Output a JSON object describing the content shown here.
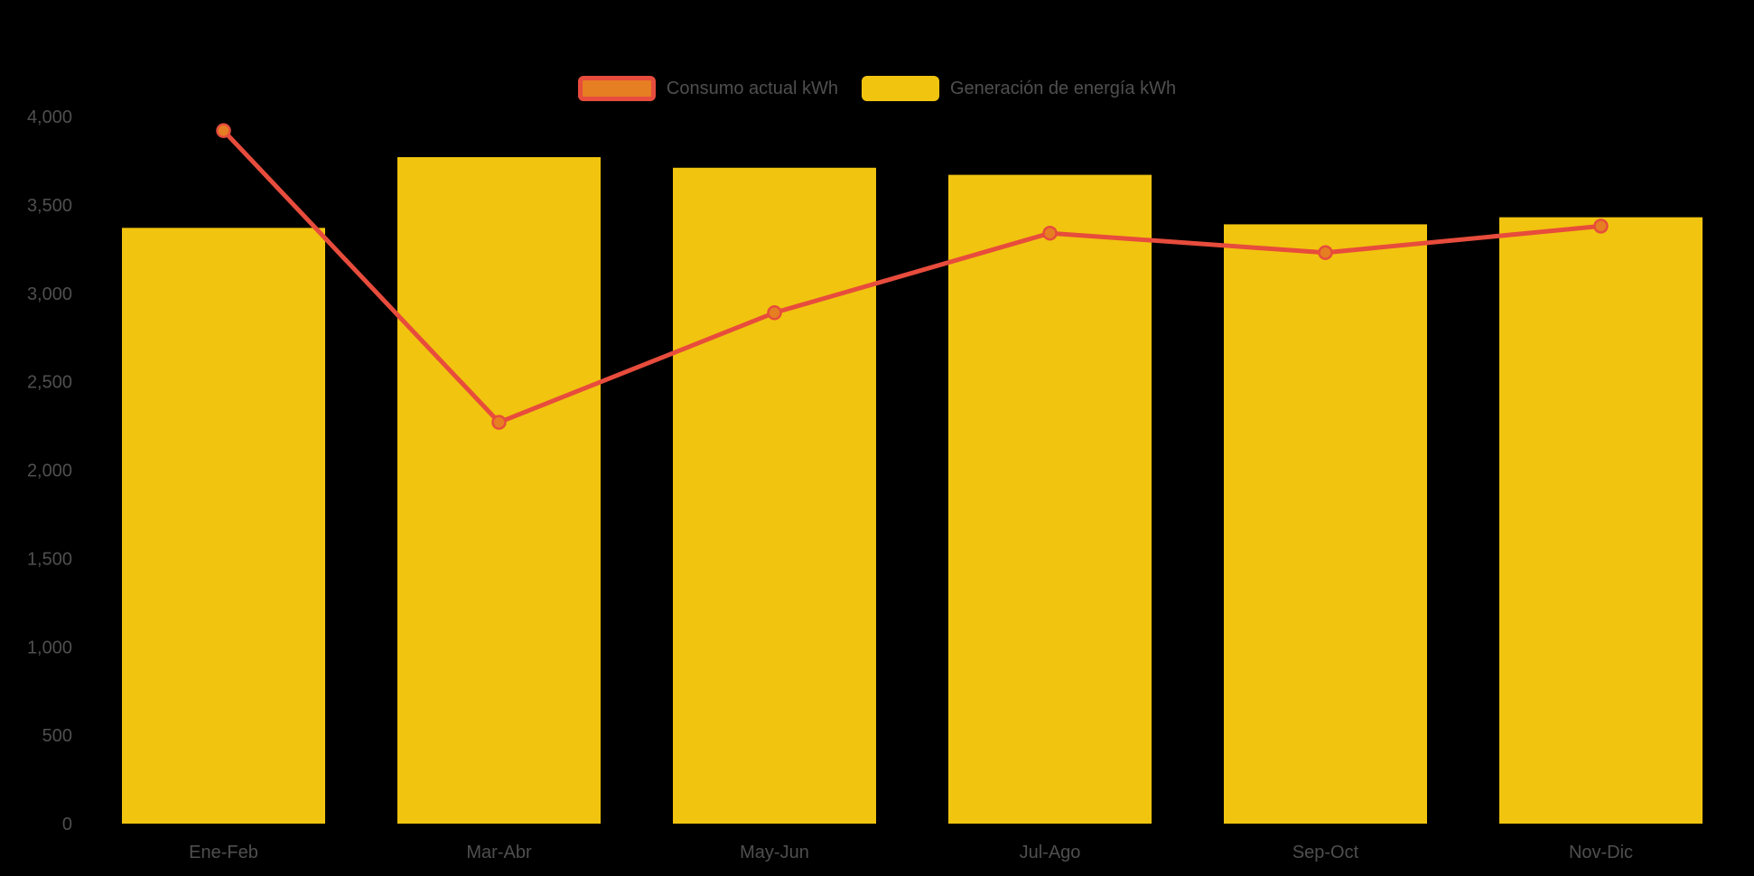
{
  "chart_data": {
    "type": "bar",
    "subtype": "combo-bar-line",
    "categories": [
      "Ene-Feb",
      "Mar-Abr",
      "May-Jun",
      "Jul-Ago",
      "Sep-Oct",
      "Nov-Dic"
    ],
    "series": [
      {
        "name": "Consumo actual kWh",
        "type": "line",
        "color": "#E74C3C",
        "marker_color": "#E67E22",
        "values": [
          3920,
          2270,
          2890,
          3340,
          3230,
          3380
        ]
      },
      {
        "name": "Generación de energía kWh",
        "type": "bar",
        "color": "#F1C40F",
        "values": [
          3370,
          3770,
          3710,
          3670,
          3390,
          3430
        ]
      }
    ],
    "title": "",
    "xlabel": "",
    "ylabel": "",
    "ylim": [
      0,
      4000
    ],
    "ytick_step": 500,
    "ytick_labels": [
      "0",
      "500",
      "1,000",
      "1,500",
      "2,000",
      "2,500",
      "3,000",
      "3,500",
      "4,000"
    ],
    "grid": false,
    "legend_position": "top-center",
    "background_color": "#000000",
    "text_color": "#4F4F4F"
  }
}
